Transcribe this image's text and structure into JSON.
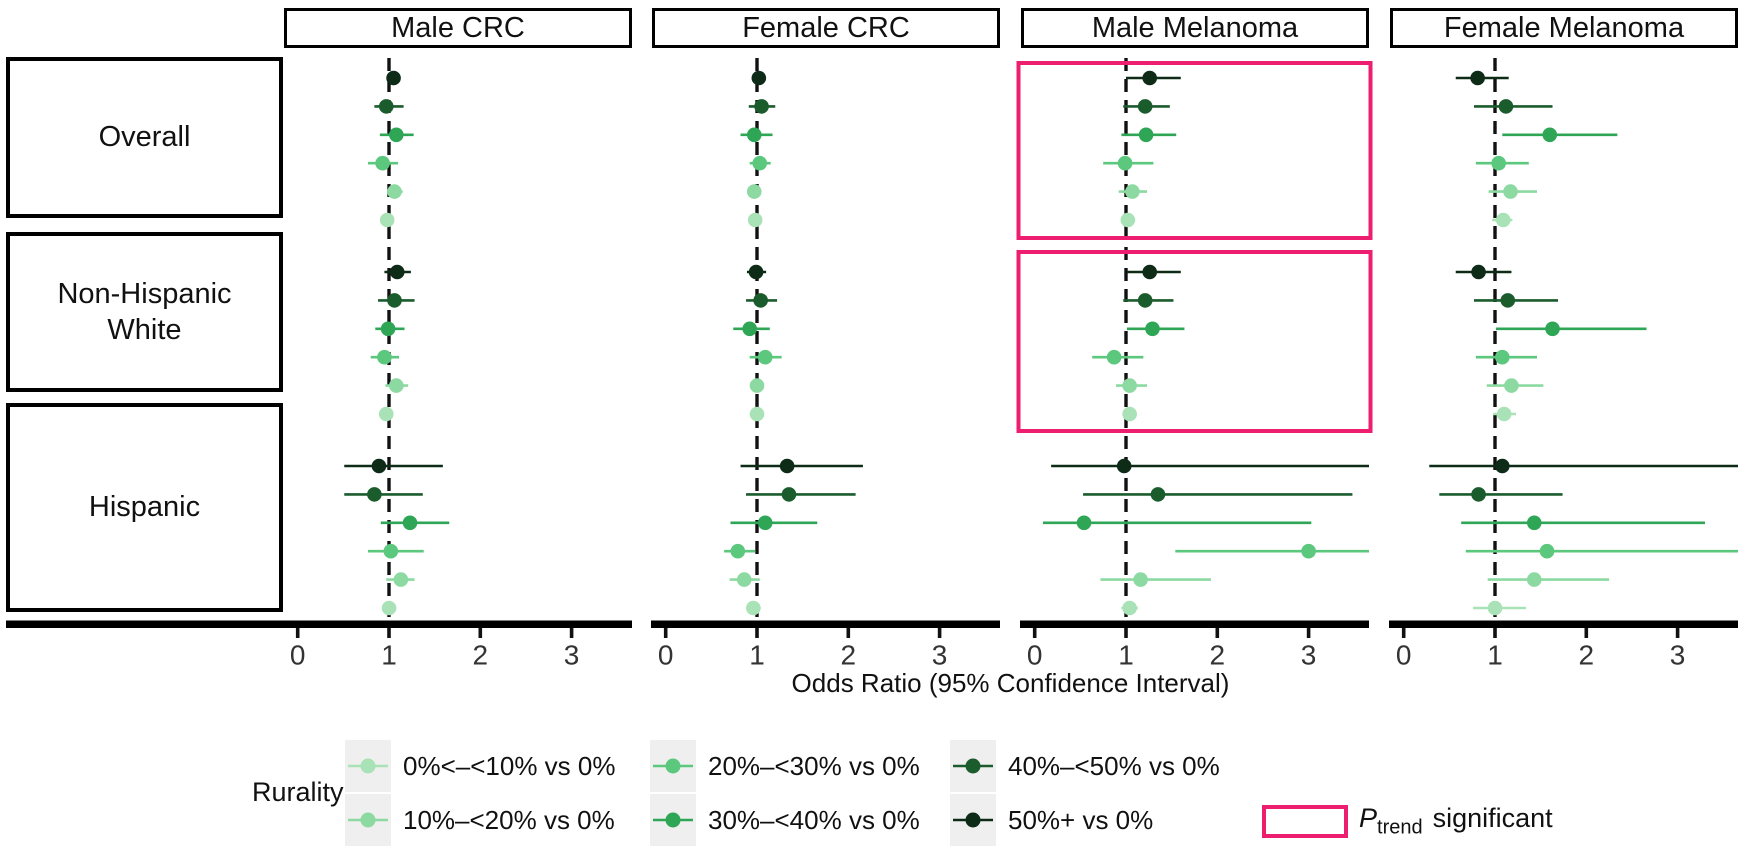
{
  "figure": {
    "ptrend": {
      "p": "P",
      "sub": "trend",
      "rest": "significant"
    },
    "colors": {
      "highlight_pink": "#ED1E70",
      "legend_swatch_bg": "#EFEFEF",
      "axis_text": "#333333",
      "line_black": "#000000"
    }
  },
  "chart_data": {
    "type": "scatter",
    "subtype": "forest-plot-with-95CI",
    "xlabel": "Odds Ratio (95% Confidence Interval)",
    "x_ticks": [
      "0",
      "1",
      "2",
      "3"
    ],
    "xlim": [
      -0.15,
      3.66
    ],
    "reference_line_at": 1,
    "groups": [
      "Overall",
      "Non-Hispanic White",
      "Hispanic"
    ],
    "categories_top_to_bottom": [
      {
        "label": "50%+ vs 0%",
        "color": "#0D2B17"
      },
      {
        "label": "40%–<50% vs 0%",
        "color": "#1B5C2D"
      },
      {
        "label": "30%–<40% vs 0%",
        "color": "#2EA656"
      },
      {
        "label": "20%–<30% vs 0%",
        "color": "#5BC87E"
      },
      {
        "label": "10%–<20% vs 0%",
        "color": "#8CD9A1"
      },
      {
        "label": "0%<–<10% vs 0%",
        "color": "#A9E2B6"
      }
    ],
    "value_format": "[odds_ratio, ci_low, ci_high] per category, top-to-bottom order",
    "panels": [
      {
        "title": "Male CRC",
        "trend_significant": [],
        "data": {
          "Overall": [
            [
              1.05,
              0.99,
              1.1
            ],
            [
              0.97,
              0.84,
              1.16
            ],
            [
              1.08,
              0.9,
              1.27
            ],
            [
              0.93,
              0.77,
              1.1
            ],
            [
              1.06,
              0.98,
              1.15
            ],
            [
              0.98,
              0.93,
              1.04
            ]
          ],
          "Non-Hispanic White": [
            [
              1.09,
              0.95,
              1.24
            ],
            [
              1.06,
              0.88,
              1.28
            ],
            [
              0.99,
              0.85,
              1.17
            ],
            [
              0.95,
              0.8,
              1.11
            ],
            [
              1.08,
              0.96,
              1.21
            ],
            [
              0.97,
              0.91,
              1.04
            ]
          ],
          "Hispanic": [
            [
              0.89,
              0.51,
              1.59
            ],
            [
              0.84,
              0.51,
              1.37
            ],
            [
              1.23,
              0.91,
              1.66
            ],
            [
              1.02,
              0.77,
              1.38
            ],
            [
              1.13,
              0.97,
              1.28
            ],
            [
              1.0,
              0.93,
              1.08
            ]
          ]
        }
      },
      {
        "title": "Female CRC",
        "trend_significant": [],
        "data": {
          "Overall": [
            [
              1.02,
              0.95,
              1.09
            ],
            [
              1.05,
              0.91,
              1.2
            ],
            [
              0.97,
              0.82,
              1.17
            ],
            [
              1.03,
              0.92,
              1.15
            ],
            [
              0.97,
              0.9,
              1.04
            ],
            [
              0.98,
              0.92,
              1.04
            ]
          ],
          "Non-Hispanic White": [
            [
              0.99,
              0.89,
              1.1
            ],
            [
              1.04,
              0.88,
              1.22
            ],
            [
              0.92,
              0.74,
              1.14
            ],
            [
              1.09,
              0.92,
              1.27
            ],
            [
              1.0,
              0.93,
              1.07
            ],
            [
              1.0,
              0.94,
              1.07
            ]
          ],
          "Hispanic": [
            [
              1.33,
              0.82,
              2.16
            ],
            [
              1.35,
              0.88,
              2.08
            ],
            [
              1.09,
              0.71,
              1.66
            ],
            [
              0.79,
              0.64,
              0.98
            ],
            [
              0.86,
              0.7,
              1.03
            ],
            [
              0.96,
              0.89,
              1.04
            ]
          ]
        }
      },
      {
        "title": "Male Melanoma",
        "trend_significant": [
          "Overall",
          "Non-Hispanic White"
        ],
        "data": {
          "Overall": [
            [
              1.26,
              1.0,
              1.6
            ],
            [
              1.21,
              0.97,
              1.48
            ],
            [
              1.22,
              0.95,
              1.55
            ],
            [
              0.99,
              0.75,
              1.3
            ],
            [
              1.07,
              0.92,
              1.23
            ],
            [
              1.02,
              0.95,
              1.1
            ]
          ],
          "Non-Hispanic White": [
            [
              1.26,
              1.01,
              1.6
            ],
            [
              1.21,
              0.97,
              1.52
            ],
            [
              1.29,
              1.01,
              1.64
            ],
            [
              0.87,
              0.63,
              1.19
            ],
            [
              1.04,
              0.89,
              1.23
            ],
            [
              1.04,
              0.97,
              1.11
            ]
          ],
          "Hispanic": [
            [
              0.98,
              0.18,
              3.67
            ],
            [
              1.35,
              0.53,
              3.48
            ],
            [
              0.54,
              0.09,
              3.03
            ],
            [
              3.0,
              1.54,
              3.67
            ],
            [
              1.16,
              0.72,
              1.93
            ],
            [
              1.04,
              0.95,
              1.13
            ]
          ]
        }
      },
      {
        "title": "Female Melanoma",
        "trend_significant": [],
        "data": {
          "Overall": [
            [
              0.81,
              0.57,
              1.15
            ],
            [
              1.12,
              0.77,
              1.63
            ],
            [
              1.6,
              1.08,
              2.34
            ],
            [
              1.04,
              0.79,
              1.37
            ],
            [
              1.17,
              0.93,
              1.46
            ],
            [
              1.09,
              0.97,
              1.19
            ]
          ],
          "Non-Hispanic White": [
            [
              0.82,
              0.57,
              1.18
            ],
            [
              1.14,
              0.77,
              1.69
            ],
            [
              1.63,
              1.01,
              2.66
            ],
            [
              1.08,
              0.79,
              1.46
            ],
            [
              1.18,
              0.91,
              1.53
            ],
            [
              1.1,
              0.98,
              1.23
            ]
          ],
          "Hispanic": [
            [
              1.08,
              0.28,
              3.67
            ],
            [
              0.82,
              0.39,
              1.74
            ],
            [
              1.43,
              0.63,
              3.3
            ],
            [
              1.57,
              0.68,
              3.67
            ],
            [
              1.43,
              0.92,
              2.25
            ],
            [
              1.0,
              0.76,
              1.34
            ]
          ]
        }
      }
    ],
    "legend": {
      "title": "Rurality",
      "items": [
        {
          "label": "0%<–<10% vs 0%",
          "color": "#A9E2B6"
        },
        {
          "label": "10%–<20% vs 0%",
          "color": "#8CD9A1"
        },
        {
          "label": "20%–<30% vs 0%",
          "color": "#5BC87E"
        },
        {
          "label": "30%–<40% vs 0%",
          "color": "#2EA656"
        },
        {
          "label": "40%–<50% vs 0%",
          "color": "#1B5C2D"
        },
        {
          "label": "50%+ vs 0%",
          "color": "#0D2B17"
        }
      ]
    },
    "highlight_legend": {
      "meaning": "P trend significant",
      "color": "#ED1E70"
    }
  }
}
